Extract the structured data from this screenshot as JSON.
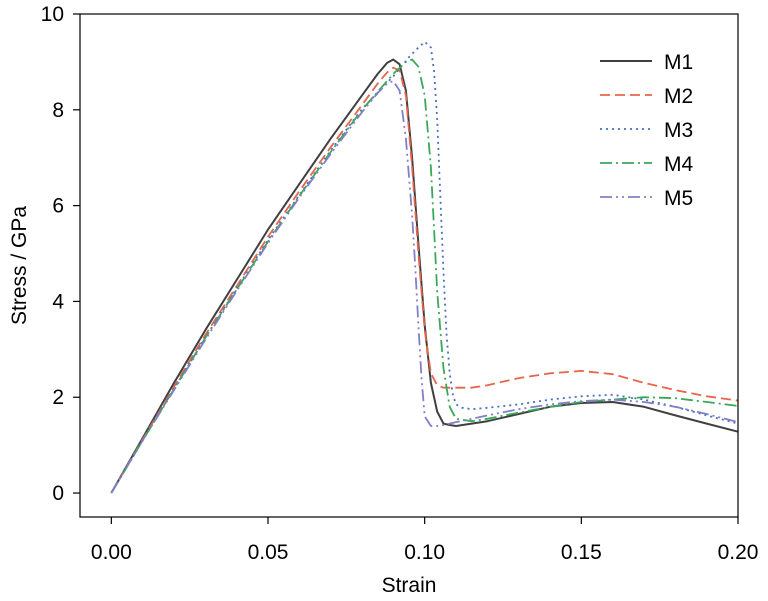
{
  "chart_data": {
    "type": "line",
    "title": "",
    "xlabel": "Strain",
    "ylabel": "Stress / GPa",
    "xlim": [
      -0.01,
      0.2
    ],
    "ylim": [
      -0.5,
      10
    ],
    "xticks": [
      0.0,
      0.05,
      0.1,
      0.15,
      0.2
    ],
    "xtick_labels": [
      "0.00",
      "0.05",
      "0.10",
      "0.15",
      "0.20"
    ],
    "yticks": [
      0,
      2,
      4,
      6,
      8,
      10
    ],
    "ytick_labels": [
      "0",
      "2",
      "4",
      "6",
      "8",
      "10"
    ],
    "grid": false,
    "legend_position": "top-right",
    "series": [
      {
        "name": "M1",
        "color": "#404040",
        "dash": "solid",
        "x": [
          0.0,
          0.01,
          0.02,
          0.03,
          0.04,
          0.05,
          0.06,
          0.07,
          0.08,
          0.085,
          0.088,
          0.09,
          0.092,
          0.094,
          0.096,
          0.098,
          0.1,
          0.102,
          0.104,
          0.106,
          0.108,
          0.11,
          0.115,
          0.12,
          0.13,
          0.14,
          0.15,
          0.16,
          0.17,
          0.18,
          0.19,
          0.2
        ],
        "y": [
          0.0,
          1.15,
          2.3,
          3.4,
          4.45,
          5.5,
          6.45,
          7.4,
          8.3,
          8.75,
          8.98,
          9.05,
          8.95,
          8.4,
          7.0,
          5.2,
          3.5,
          2.3,
          1.7,
          1.45,
          1.42,
          1.4,
          1.45,
          1.5,
          1.65,
          1.8,
          1.88,
          1.9,
          1.8,
          1.62,
          1.45,
          1.28
        ]
      },
      {
        "name": "M2",
        "color": "#e8644a",
        "dash": "10 5",
        "x": [
          0.0,
          0.01,
          0.02,
          0.03,
          0.04,
          0.05,
          0.06,
          0.07,
          0.08,
          0.085,
          0.088,
          0.09,
          0.092,
          0.094,
          0.096,
          0.098,
          0.1,
          0.102,
          0.104,
          0.106,
          0.108,
          0.11,
          0.115,
          0.12,
          0.13,
          0.14,
          0.15,
          0.16,
          0.17,
          0.18,
          0.19,
          0.2
        ],
        "y": [
          0.0,
          1.12,
          2.22,
          3.3,
          4.32,
          5.35,
          6.3,
          7.22,
          8.1,
          8.55,
          8.78,
          8.88,
          8.82,
          8.3,
          6.8,
          5.0,
          3.4,
          2.5,
          2.25,
          2.2,
          2.2,
          2.2,
          2.2,
          2.25,
          2.4,
          2.5,
          2.55,
          2.48,
          2.3,
          2.15,
          2.02,
          1.93
        ]
      },
      {
        "name": "M3",
        "color": "#4a6fbe",
        "dash": "2 4",
        "x": [
          0.0,
          0.01,
          0.02,
          0.03,
          0.04,
          0.05,
          0.06,
          0.07,
          0.08,
          0.09,
          0.095,
          0.098,
          0.1,
          0.102,
          0.103,
          0.104,
          0.105,
          0.106,
          0.107,
          0.108,
          0.109,
          0.11,
          0.112,
          0.115,
          0.12,
          0.13,
          0.14,
          0.15,
          0.16,
          0.17,
          0.18,
          0.19,
          0.2
        ],
        "y": [
          0.0,
          1.1,
          2.18,
          3.25,
          4.27,
          5.28,
          6.22,
          7.15,
          8.02,
          8.7,
          9.1,
          9.3,
          9.42,
          9.3,
          8.8,
          7.8,
          6.2,
          4.6,
          3.3,
          2.5,
          2.05,
          1.85,
          1.78,
          1.75,
          1.78,
          1.85,
          1.95,
          2.02,
          2.05,
          1.95,
          1.8,
          1.62,
          1.45
        ]
      },
      {
        "name": "M4",
        "color": "#3aa85a",
        "dash": "12 4 2 4",
        "x": [
          0.0,
          0.01,
          0.02,
          0.03,
          0.04,
          0.05,
          0.06,
          0.07,
          0.08,
          0.09,
          0.094,
          0.096,
          0.098,
          0.1,
          0.102,
          0.103,
          0.104,
          0.106,
          0.108,
          0.11,
          0.115,
          0.12,
          0.13,
          0.14,
          0.15,
          0.16,
          0.17,
          0.18,
          0.19,
          0.2
        ],
        "y": [
          0.0,
          1.1,
          2.17,
          3.24,
          4.25,
          5.25,
          6.2,
          7.12,
          8.0,
          8.75,
          9.0,
          9.05,
          8.9,
          8.3,
          6.8,
          5.5,
          4.2,
          2.6,
          1.8,
          1.55,
          1.5,
          1.55,
          1.68,
          1.8,
          1.9,
          1.95,
          2.0,
          1.98,
          1.9,
          1.82
        ]
      },
      {
        "name": "M5",
        "color": "#8080c8",
        "dash": "12 4 2 4 2 4",
        "x": [
          0.0,
          0.01,
          0.02,
          0.03,
          0.04,
          0.05,
          0.06,
          0.07,
          0.08,
          0.085,
          0.088,
          0.09,
          0.092,
          0.094,
          0.096,
          0.097,
          0.098,
          0.099,
          0.1,
          0.102,
          0.104,
          0.106,
          0.108,
          0.11,
          0.115,
          0.12,
          0.13,
          0.14,
          0.15,
          0.16,
          0.17,
          0.18,
          0.19,
          0.2
        ],
        "y": [
          0.0,
          1.1,
          2.15,
          3.2,
          4.22,
          5.22,
          6.17,
          7.08,
          7.95,
          8.35,
          8.55,
          8.6,
          8.4,
          7.4,
          5.8,
          4.7,
          3.5,
          2.4,
          1.6,
          1.4,
          1.4,
          1.42,
          1.45,
          1.48,
          1.55,
          1.62,
          1.75,
          1.85,
          1.92,
          1.95,
          1.9,
          1.8,
          1.65,
          1.48
        ]
      }
    ]
  }
}
